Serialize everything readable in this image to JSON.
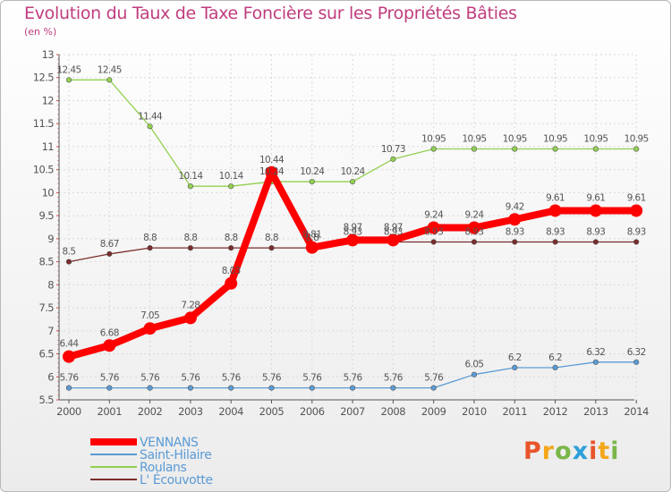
{
  "chart_data": {
    "type": "line",
    "title": "Evolution du Taux de Taxe Foncière sur les Propriétés Bâties",
    "ylabel": "(en %)",
    "xlabel": "",
    "x": [
      "2000",
      "2001",
      "2002",
      "2003",
      "2004",
      "2005",
      "2006",
      "2007",
      "2008",
      "2009",
      "2010",
      "2011",
      "2012",
      "2013",
      "2014"
    ],
    "ylim": [
      5.5,
      13
    ],
    "yticks": [
      "5.5",
      "6",
      "6.5",
      "7",
      "7.5",
      "8",
      "8.5",
      "9",
      "9.5",
      "10",
      "10.5",
      "11",
      "11.5",
      "12",
      "12.5",
      "13"
    ],
    "grid": true,
    "legend_position": "bottom-left",
    "series": [
      {
        "name": "VENNANS",
        "color": "#ff0000",
        "values": [
          6.44,
          6.68,
          7.05,
          7.28,
          8.03,
          10.44,
          8.81,
          8.97,
          8.97,
          9.24,
          9.24,
          9.42,
          9.61,
          9.61,
          9.61
        ],
        "labels": [
          "6.44",
          "6.68",
          "7.05",
          "7.28",
          "8.03",
          "10.44",
          "8.81",
          "8.97",
          "8.97",
          "9.24",
          "9.24",
          "9.42",
          "9.61",
          "9.61",
          "9.61"
        ]
      },
      {
        "name": "Saint-Hilaire",
        "color": "#5b9bd5",
        "values": [
          5.76,
          5.76,
          5.76,
          5.76,
          5.76,
          5.76,
          5.76,
          5.76,
          5.76,
          5.76,
          6.05,
          6.2,
          6.2,
          6.32,
          6.32
        ],
        "labels": [
          "5.76",
          "5.76",
          "5.76",
          "5.76",
          "5.76",
          "5.76",
          "5.76",
          "5.76",
          "5.76",
          "5.76",
          "6.05",
          "6.2",
          "6.2",
          "6.32",
          "6.32"
        ]
      },
      {
        "name": "Roulans",
        "color": "#92d050",
        "values": [
          12.45,
          12.45,
          11.44,
          10.14,
          10.14,
          10.24,
          10.24,
          10.24,
          10.73,
          10.95,
          10.95,
          10.95,
          10.95,
          10.95,
          10.95
        ],
        "labels": [
          "12.45",
          "12.45",
          "11.44",
          "10.14",
          "10.14",
          "10.24",
          "10.24",
          "10.24",
          "10.73",
          "10.95",
          "10.95",
          "10.95",
          "10.95",
          "10.95",
          "10.95"
        ]
      },
      {
        "name": "L' Écouvotte",
        "color": "#7b2c2c",
        "values": [
          8.5,
          8.67,
          8.8,
          8.8,
          8.8,
          8.8,
          8.8,
          8.93,
          8.93,
          8.93,
          8.93,
          8.93,
          8.93,
          8.93,
          8.93
        ],
        "labels": [
          "8.5",
          "8.67",
          "8.8",
          "8.8",
          "8.8",
          "8.8",
          "8.8",
          "8.93",
          "8.93",
          "8.93",
          "8.93",
          "8.93",
          "8.93",
          "8.93",
          "8.93"
        ]
      }
    ]
  },
  "logo": {
    "text": "Proxiti",
    "colors": [
      "#e8542a",
      "#f4a71b",
      "#7ab648",
      "#2d9fd9",
      "#e8542a",
      "#f4a71b",
      "#7ab648"
    ]
  }
}
